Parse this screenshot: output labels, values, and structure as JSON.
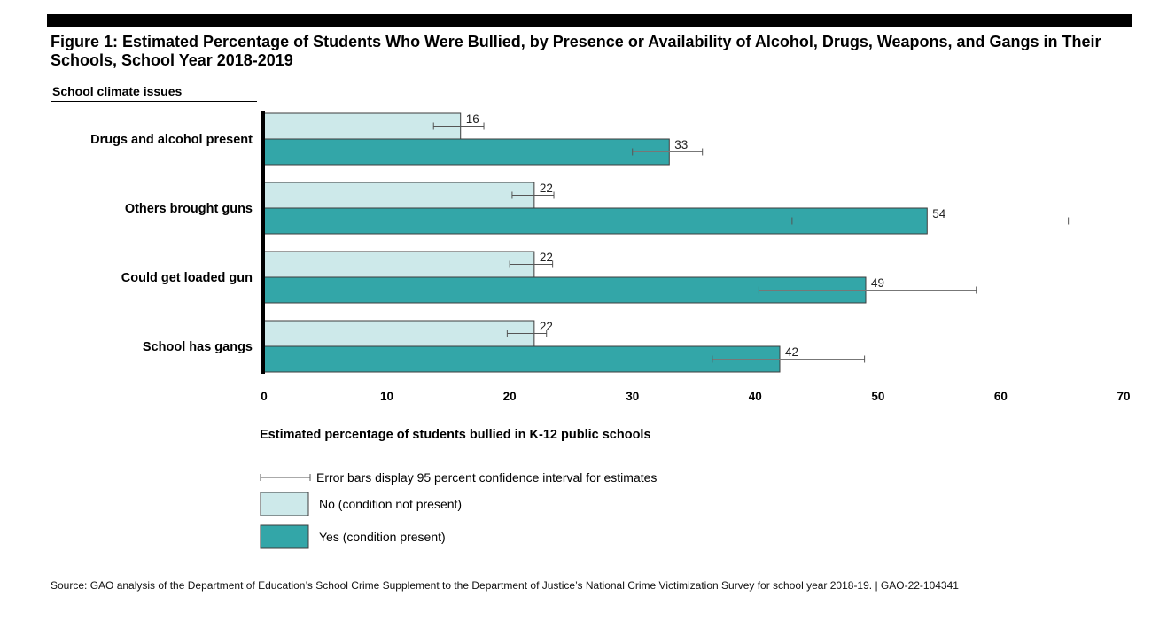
{
  "figure": {
    "title": "Figure 1: Estimated Percentage of Students Who Were Bullied, by Presence or Availability of Alcohol, Drugs, Weapons, and Gangs in Their Schools, School Year 2018-2019",
    "y_header": "School climate issues",
    "source": "Source: GAO analysis of the Department of Education’s School Crime Supplement to the Department of Justice’s National Crime Victimization Survey for school year 2018-19.  |  GAO-22-104341"
  },
  "chart_data": {
    "type": "bar",
    "orientation": "horizontal",
    "categories": [
      "Drugs and alcohol present",
      "Others brought guns",
      "Could get loaded gun",
      "School has gangs"
    ],
    "series": [
      {
        "name": "No (condition not present)",
        "color": "#cde9ea",
        "values": [
          16,
          22,
          22,
          22
        ],
        "ci_low": [
          13.8,
          20.2,
          20.0,
          19.8
        ],
        "ci_high": [
          17.9,
          23.6,
          23.5,
          23.0
        ]
      },
      {
        "name": "Yes (condition present)",
        "color": "#33a6a8",
        "values": [
          33,
          54,
          49,
          42
        ],
        "ci_low": [
          30.0,
          43.0,
          40.3,
          36.5
        ],
        "ci_high": [
          35.7,
          65.5,
          58.0,
          48.9
        ]
      }
    ],
    "xlabel": "Estimated percentage of students bullied in K-12 public schools",
    "ylabel": "School climate issues",
    "xlim": [
      0,
      70
    ],
    "xticks": [
      0,
      10,
      20,
      30,
      40,
      50,
      60,
      70
    ],
    "legend": {
      "error_bar_text": "Error bars display 95 percent confidence interval for estimates",
      "position": "bottom-left"
    }
  }
}
